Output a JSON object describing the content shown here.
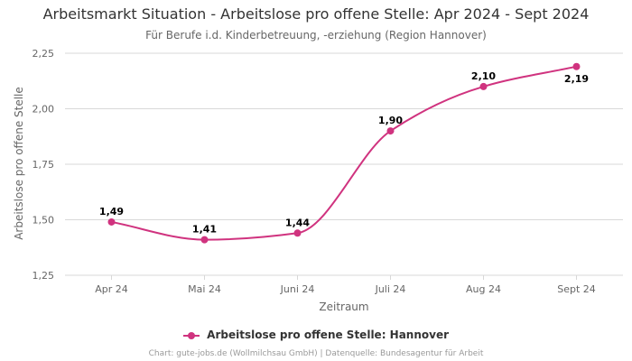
{
  "colors": {
    "series": "#d0337f",
    "grid": "#d8d8d8",
    "text": "#333333",
    "axis_text": "#666666"
  },
  "chart_data": {
    "type": "line",
    "title": "Arbeitsmarkt Situation - Arbeitslose pro offene Stelle: Apr 2024 - Sept 2024",
    "subtitle": "Für Berufe i.d. Kinderbetreuung, -erziehung (Region Hannover)",
    "xlabel": "Zeitraum",
    "ylabel": "Arbeitslose pro offene Stelle",
    "categories": [
      "Apr 24",
      "Mai 24",
      "Juni 24",
      "Juli 24",
      "Aug 24",
      "Sept 24"
    ],
    "series": [
      {
        "name": "Arbeitslose pro offene Stelle: Hannover",
        "values": [
          1.49,
          1.41,
          1.44,
          1.9,
          2.1,
          2.19
        ],
        "labels": [
          "1,49",
          "1,41",
          "1,44",
          "1,90",
          "2,10",
          "2,19"
        ]
      }
    ],
    "ylim": [
      1.25,
      2.25
    ],
    "yticks": [
      "1,25",
      "1,50",
      "1,75",
      "2,00",
      "2,25"
    ],
    "grid": true,
    "legend_position": "bottom"
  },
  "credit": "Chart: gute-jobs.de (Wollmilchsau GmbH) | Datenquelle: Bundesagentur für Arbeit"
}
